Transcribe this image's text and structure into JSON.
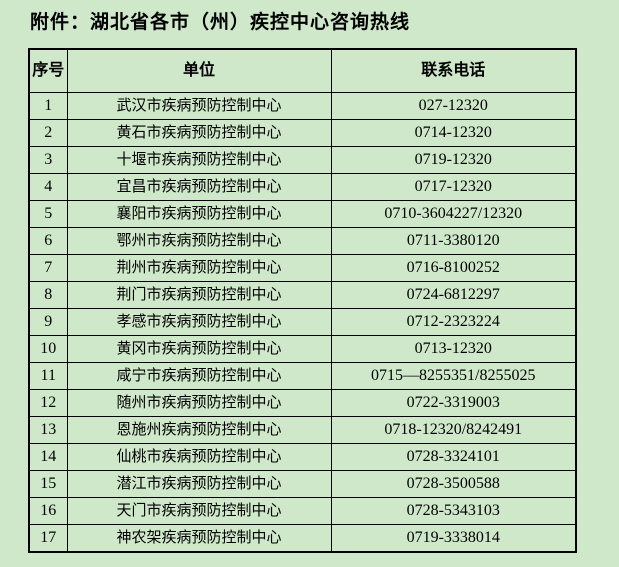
{
  "page": {
    "title": "附件：湖北省各市（州）疾控中心咨询热线"
  },
  "table": {
    "headers": {
      "no": "序号",
      "unit": "单位",
      "phone": "联系电话"
    },
    "rows": [
      {
        "no": "1",
        "unit": "武汉市疾病预防控制中心",
        "phone": "027-12320"
      },
      {
        "no": "2",
        "unit": "黄石市疾病预防控制中心",
        "phone": "0714-12320"
      },
      {
        "no": "3",
        "unit": "十堰市疾病预防控制中心",
        "phone": "0719-12320"
      },
      {
        "no": "4",
        "unit": "宜昌市疾病预防控制中心",
        "phone": "0717-12320"
      },
      {
        "no": "5",
        "unit": "襄阳市疾病预防控制中心",
        "phone": "0710-3604227/12320"
      },
      {
        "no": "6",
        "unit": "鄂州市疾病预防控制中心",
        "phone": "0711-3380120"
      },
      {
        "no": "7",
        "unit": "荆州市疾病预防控制中心",
        "phone": "0716-8100252"
      },
      {
        "no": "8",
        "unit": "荆门市疾病预防控制中心",
        "phone": "0724-6812297"
      },
      {
        "no": "9",
        "unit": "孝感市疾病预防控制中心",
        "phone": "0712-2323224"
      },
      {
        "no": "10",
        "unit": "黄冈市疾病预防控制中心",
        "phone": "0713-12320"
      },
      {
        "no": "11",
        "unit": "咸宁市疾病预防控制中心",
        "phone": "0715—8255351/8255025"
      },
      {
        "no": "12",
        "unit": "随州市疾病预防控制中心",
        "phone": "0722-3319003"
      },
      {
        "no": "13",
        "unit": "恩施州疾病预防控制中心",
        "phone": "0718-12320/8242491"
      },
      {
        "no": "14",
        "unit": "仙桃市疾病预防控制中心",
        "phone": "0728-3324101"
      },
      {
        "no": "15",
        "unit": "潜江市疾病预防控制中心",
        "phone": "0728-3500588"
      },
      {
        "no": "16",
        "unit": "天门市疾病预防控制中心",
        "phone": "0728-5343103"
      },
      {
        "no": "17",
        "unit": "神农架疾病预防控制中心",
        "phone": "0719-3338014"
      }
    ]
  },
  "colors": {
    "page_background": "#cfe8ca",
    "table_border": "#000000",
    "text": "#000000"
  }
}
